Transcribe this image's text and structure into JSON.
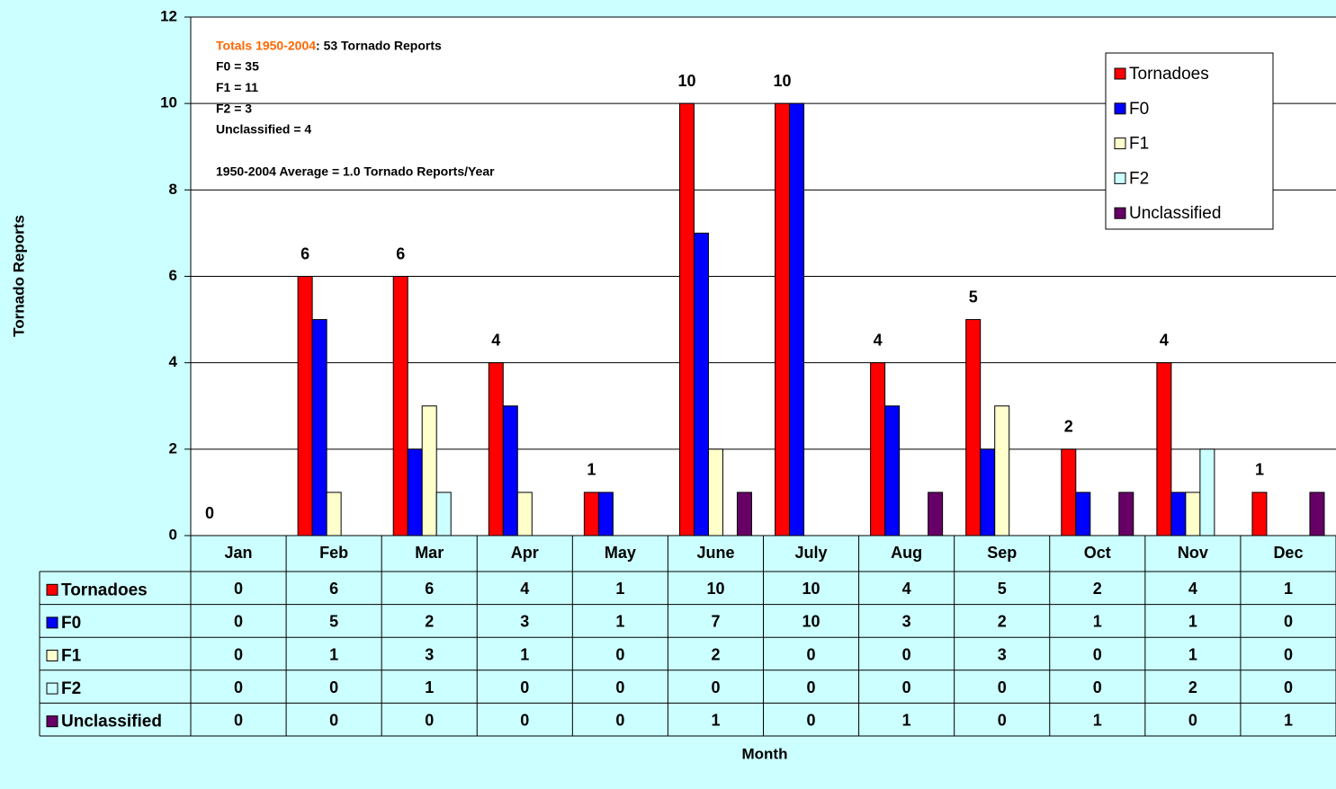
{
  "chart_data": {
    "type": "bar",
    "y_label": "Tornado Reports",
    "x_label": "Month",
    "annotation_heading": "Totals 1950-2004",
    "annotation_heading_rest": ":  53 Tornado Reports",
    "annotations": [
      "F0 = 35",
      "F1 = 11",
      "F2 = 3",
      "Unclassified = 4",
      "1950-2004 Average = 1.0 Tornado Reports/Year"
    ],
    "categories": [
      "Jan",
      "Feb",
      "Mar",
      "Apr",
      "May",
      "June",
      "July",
      "Aug",
      "Sep",
      "Oct",
      "Nov",
      "Dec"
    ],
    "series": [
      {
        "name": "Tornadoes",
        "color": "#ff0000",
        "values": [
          0,
          6,
          6,
          4,
          1,
          10,
          10,
          4,
          5,
          2,
          4,
          1
        ]
      },
      {
        "name": "F0",
        "color": "#0000ff",
        "values": [
          0,
          5,
          2,
          3,
          1,
          7,
          10,
          3,
          2,
          1,
          1,
          0
        ]
      },
      {
        "name": "F1",
        "color": "#ffffcc",
        "values": [
          0,
          1,
          3,
          1,
          0,
          2,
          0,
          0,
          3,
          0,
          1,
          0
        ]
      },
      {
        "name": "F2",
        "color": "#ccffff",
        "values": [
          0,
          0,
          1,
          0,
          0,
          0,
          0,
          0,
          0,
          0,
          2,
          0
        ]
      },
      {
        "name": "Unclassified",
        "color": "#660066",
        "values": [
          0,
          0,
          0,
          0,
          0,
          1,
          0,
          1,
          0,
          1,
          0,
          1
        ]
      }
    ],
    "ylim": [
      0,
      12
    ],
    "yticks": [
      0,
      2,
      4,
      6,
      8,
      10,
      12
    ],
    "grid": true,
    "legend": "upper right",
    "data_table": true
  }
}
